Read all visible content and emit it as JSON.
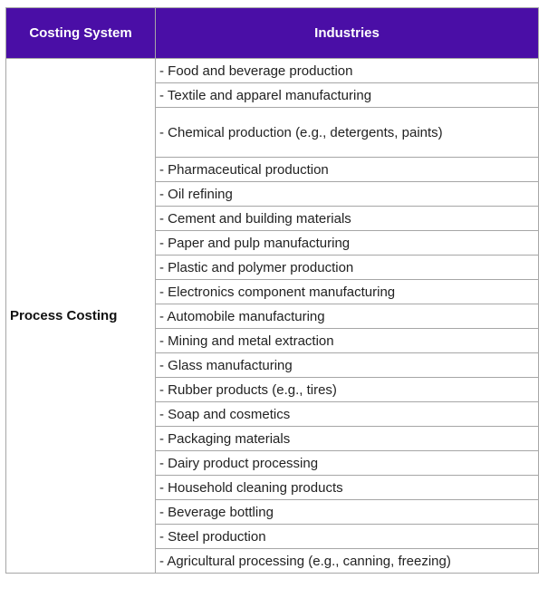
{
  "table": {
    "header": [
      "Costing System",
      "Industries"
    ],
    "rows": [
      {
        "system": "Process Costing",
        "industries": [
          "- Food and beverage production",
          "- Textile and apparel manufacturing",
          "- Chemical production (e.g., detergents, paints)",
          "- Pharmaceutical production",
          "- Oil refining",
          "- Cement and building materials",
          "- Paper and pulp manufacturing",
          "- Plastic and polymer production",
          "- Electronics component manufacturing",
          "- Automobile manufacturing",
          "- Mining and metal extraction",
          "- Glass manufacturing",
          "- Rubber products (e.g., tires)",
          "- Soap and cosmetics",
          "- Packaging materials",
          "- Dairy product processing",
          "- Household cleaning products",
          "- Beverage bottling",
          "- Steel production",
          "- Agricultural processing (e.g., canning, freezing)"
        ]
      }
    ]
  }
}
